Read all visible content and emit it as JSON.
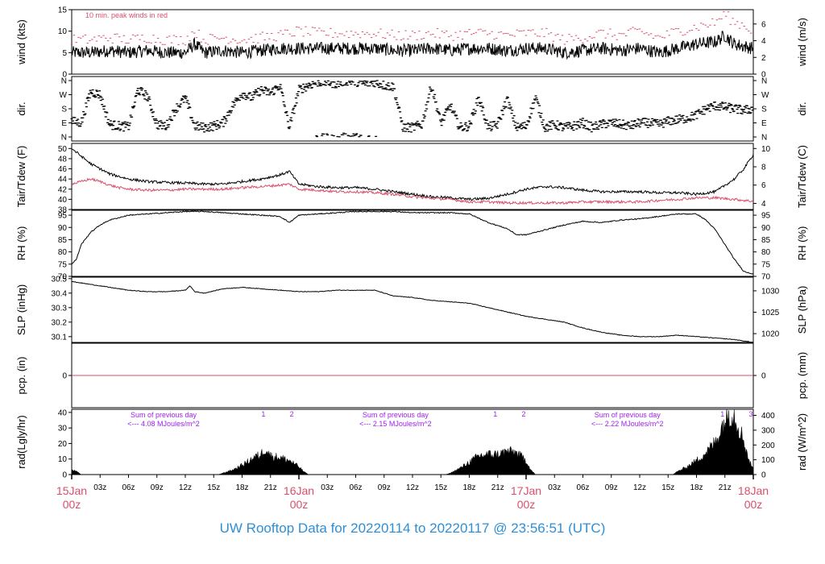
{
  "title": "UW Rooftop Data for 20220114  to  20220117 @ 23:56:51  (UTC)",
  "colors": {
    "primary": "#000000",
    "secondary": "#d94f6b",
    "note": "#a020f0",
    "title": "#2e8fd6",
    "datelabel": "#d94f6b"
  },
  "time_axis": {
    "hours": [
      "03z",
      "06z",
      "09z",
      "12z",
      "15z",
      "18z",
      "21z"
    ],
    "days": [
      {
        "date": "15Jan",
        "hour": "00z"
      },
      {
        "date": "16Jan",
        "hour": "00z"
      },
      {
        "date": "17Jan",
        "hour": "00z"
      },
      {
        "date": "18Jan",
        "hour": "00z"
      }
    ],
    "range_hours": [
      0,
      72
    ]
  },
  "chart_data": [
    {
      "type": "line",
      "panel": "wind",
      "ylabel": "wind (kts)",
      "ylabel_right": "wind (m/s)",
      "ylim": [
        0,
        15
      ],
      "yticks": [
        0,
        5,
        10,
        15
      ],
      "yticks_right": [
        0,
        2,
        4,
        6
      ],
      "right_factor": 0.5144,
      "annotation": "10 min. peak winds in red",
      "series": [
        {
          "x": [
            0,
            2,
            4,
            6,
            8,
            10,
            12,
            13,
            14,
            16,
            18,
            20,
            22,
            24,
            26,
            28,
            30,
            32,
            34,
            36,
            38,
            40,
            42,
            44,
            46,
            48,
            50,
            52,
            54,
            56,
            58,
            60,
            62,
            64,
            66,
            68,
            69,
            70,
            71,
            72
          ],
          "values": [
            5,
            5,
            5.5,
            5,
            5.5,
            5,
            5,
            7,
            5,
            5.5,
            5,
            5.5,
            6,
            6,
            6,
            6,
            6,
            6,
            5.5,
            5.5,
            6,
            5.5,
            6,
            6,
            5.5,
            6,
            6,
            5,
            5.5,
            6,
            5.5,
            6,
            5,
            6,
            7,
            7.5,
            9,
            7,
            6.5,
            6
          ]
        },
        {
          "x": [
            0,
            2,
            4,
            6,
            8,
            10,
            12,
            13,
            14,
            16,
            18,
            20,
            22,
            24,
            26,
            28,
            30,
            32,
            34,
            36,
            38,
            40,
            42,
            44,
            46,
            48,
            50,
            52,
            54,
            56,
            58,
            60,
            62,
            64,
            66,
            68,
            69,
            70,
            71,
            72
          ],
          "values": [
            8,
            8,
            8.5,
            8,
            8.5,
            8,
            8,
            10,
            8,
            8.5,
            8,
            8.5,
            9,
            10,
            9.5,
            9.5,
            9.5,
            9.5,
            9,
            9,
            9.5,
            9,
            9.5,
            9.5,
            9,
            9.5,
            9.5,
            8,
            8.5,
            9.5,
            9,
            10,
            8.5,
            10,
            11,
            12,
            14,
            12,
            11.5,
            10
          ]
        }
      ]
    },
    {
      "type": "scatter",
      "panel": "direction",
      "ylabel": "dir.",
      "ylabel_right": "dir.",
      "yticks_labels": [
        "N",
        "E",
        "S",
        "W",
        "N"
      ],
      "yticks": [
        0,
        90,
        180,
        270,
        360
      ],
      "ylim": [
        0,
        360
      ],
      "series": [
        {
          "x": [
            0,
            1,
            2,
            3,
            4,
            5,
            6,
            7,
            8,
            9,
            10,
            11,
            12,
            13,
            14,
            15,
            16,
            17,
            18,
            19,
            20,
            21,
            22,
            23,
            24,
            25,
            26,
            27,
            28,
            29,
            30,
            31,
            32,
            33,
            34,
            35,
            36,
            37,
            38,
            39,
            40,
            41,
            42,
            43,
            44,
            45,
            46,
            47,
            48,
            49,
            50,
            51,
            52,
            53,
            54,
            55,
            56,
            57,
            58,
            59,
            60,
            61,
            62,
            63,
            64,
            65,
            66,
            67,
            68,
            69,
            70,
            71,
            72
          ],
          "values": [
            100,
            90,
            290,
            270,
            80,
            70,
            65,
            300,
            260,
            80,
            70,
            180,
            250,
            70,
            60,
            70,
            90,
            200,
            280,
            250,
            300,
            280,
            330,
            60,
            300,
            330,
            350,
            350,
            340,
            360,
            355,
            340,
            350,
            330,
            320,
            60,
            60,
            80,
            330,
            90,
            200,
            60,
            70,
            250,
            60,
            80,
            240,
            60,
            70,
            250,
            60,
            80,
            60,
            70,
            90,
            60,
            80,
            90,
            80,
            70,
            90,
            90,
            80,
            100,
            110,
            120,
            140,
            180,
            200,
            190,
            180,
            170,
            180
          ]
        }
      ]
    },
    {
      "type": "line",
      "panel": "temperature",
      "ylabel": "Tair/Tdew (F)",
      "ylabel_right": "Tair/Tdew (C)",
      "ylim": [
        38,
        51
      ],
      "yticks": [
        38,
        40,
        42,
        44,
        46,
        48,
        50
      ],
      "yticks_right": [
        4,
        6,
        8,
        10
      ],
      "series": [
        {
          "x": [
            0,
            1,
            2,
            3,
            4,
            5,
            6,
            8,
            10,
            12,
            14,
            16,
            18,
            20,
            22,
            23,
            24,
            26,
            28,
            30,
            32,
            34,
            36,
            38,
            40,
            42,
            44,
            46,
            48,
            50,
            52,
            54,
            56,
            58,
            60,
            62,
            64,
            66,
            68,
            70,
            71,
            72
          ],
          "values": [
            50,
            48.5,
            47,
            46,
            45,
            44.5,
            44,
            43.5,
            43.3,
            43.2,
            43,
            43,
            43.5,
            44,
            44.8,
            45.5,
            43,
            42.5,
            42.3,
            42.3,
            42,
            41.5,
            41,
            40.5,
            40.3,
            40,
            40.2,
            41,
            42,
            42.5,
            42.3,
            41.8,
            41.5,
            41.5,
            41.5,
            41.3,
            41.3,
            41,
            41.5,
            44,
            46,
            48.8
          ]
        },
        {
          "x": [
            0,
            1,
            2,
            3,
            4,
            5,
            6,
            8,
            10,
            12,
            14,
            16,
            18,
            20,
            22,
            23,
            24,
            26,
            28,
            30,
            32,
            34,
            36,
            38,
            40,
            42,
            44,
            46,
            48,
            50,
            52,
            54,
            56,
            58,
            60,
            62,
            64,
            66,
            68,
            70,
            71,
            72
          ],
          "values": [
            43,
            43.5,
            44,
            43.5,
            42.8,
            42.3,
            42,
            41.8,
            41.8,
            42,
            42,
            42,
            42.3,
            42.5,
            42.8,
            43,
            42,
            41.8,
            41.5,
            41.5,
            41.3,
            41,
            40.5,
            40.2,
            40,
            39.5,
            39.5,
            39.3,
            39.3,
            39.3,
            39.3,
            39.5,
            39.5,
            39.5,
            39.5,
            39.8,
            40,
            40.3,
            40.3,
            40,
            39.8,
            39.6
          ]
        }
      ]
    },
    {
      "type": "line",
      "panel": "humidity",
      "ylabel": "RH (%)",
      "ylabel_right": "RH (%)",
      "ylim": [
        70,
        97
      ],
      "yticks": [
        70,
        75,
        80,
        85,
        90,
        95
      ],
      "yticks_right": [
        70,
        75,
        80,
        85,
        90,
        95
      ],
      "series": [
        {
          "x": [
            0,
            0.5,
            1,
            2,
            3,
            4,
            5,
            6,
            8,
            10,
            12,
            14,
            16,
            18,
            20,
            22,
            23,
            24,
            26,
            28,
            30,
            32,
            34,
            36,
            38,
            40,
            42,
            44,
            46,
            47,
            48,
            50,
            52,
            54,
            56,
            58,
            60,
            62,
            64,
            66,
            67,
            68,
            69,
            70,
            71,
            72
          ],
          "values": [
            75,
            77,
            83,
            88,
            91,
            93,
            94,
            95,
            95.5,
            96,
            96.5,
            96.5,
            96,
            95.5,
            95,
            94.5,
            92,
            95,
            95.5,
            96,
            96.5,
            96.5,
            96.5,
            96,
            96,
            96,
            95.5,
            92,
            89.5,
            87,
            87,
            89,
            91,
            92.5,
            92,
            93,
            93.5,
            94.5,
            95.5,
            95.5,
            93,
            89,
            83,
            77,
            72,
            71
          ]
        }
      ]
    },
    {
      "type": "line",
      "panel": "pressure",
      "ylabel": "SLP (inHg)",
      "ylabel_right": "SLP (hPa)",
      "ylim": [
        30.06,
        30.51
      ],
      "yticks": [
        30.1,
        30.2,
        30.3,
        30.4,
        30.5
      ],
      "yticks_right": [
        1020,
        1025,
        1030
      ],
      "series": [
        {
          "x": [
            0,
            2,
            4,
            6,
            8,
            10,
            12,
            12.5,
            13,
            14,
            16,
            18,
            20,
            22,
            24,
            26,
            28,
            30,
            32,
            34,
            36,
            38,
            40,
            42,
            44,
            46,
            48,
            50,
            52,
            54,
            56,
            58,
            60,
            62,
            64,
            66,
            68,
            70,
            72
          ],
          "values": [
            30.48,
            30.46,
            30.44,
            30.42,
            30.41,
            30.41,
            30.42,
            30.45,
            30.41,
            30.4,
            30.43,
            30.44,
            30.43,
            30.42,
            30.41,
            30.41,
            30.42,
            30.42,
            30.42,
            30.38,
            30.37,
            30.35,
            30.34,
            30.33,
            30.3,
            30.27,
            30.24,
            30.22,
            30.2,
            30.16,
            30.13,
            30.11,
            30.1,
            30.1,
            30.11,
            30.1,
            30.09,
            30.08,
            30.06
          ]
        }
      ]
    },
    {
      "type": "line",
      "panel": "precipitation",
      "ylabel": "pcp. (in)",
      "ylabel_right": "pcp. (mm)",
      "ylim": [
        -0.1,
        0.1
      ],
      "yticks": [
        0
      ],
      "yticks_right": [
        0
      ],
      "series": [
        {
          "x": [
            0,
            72
          ],
          "values": [
            0,
            0
          ]
        }
      ]
    },
    {
      "type": "area",
      "panel": "radiation",
      "ylabel": "rad(Lgly/hr)",
      "ylabel_right": "rad (W/m^2)",
      "ylim": [
        0,
        42
      ],
      "yticks": [
        0,
        10,
        20,
        30,
        40
      ],
      "yticks_right": [
        0,
        100,
        200,
        300,
        400
      ],
      "annotations": [
        {
          "line1": "Sum of previous day",
          "line2": "<--- 4.08 MJoules/m^2",
          "x": 8
        },
        {
          "line1": "Sum of previous day",
          "line2": "<--- 2.15 MJoules/m^2",
          "x": 32.5
        },
        {
          "line1": "Sum of previous day",
          "line2": "<--- 2.22 MJoules/m^2",
          "x": 57
        }
      ],
      "markers": [
        {
          "label": "1",
          "x": 20.5
        },
        {
          "label": "2",
          "x": 23.5
        },
        {
          "label": "1",
          "x": 45
        },
        {
          "label": "2",
          "x": 48
        },
        {
          "label": "1",
          "x": 69
        },
        {
          "label": "3",
          "x": 72
        }
      ],
      "series": [
        {
          "x": [
            0,
            0.5,
            1,
            15.5,
            16,
            17,
            18,
            19,
            20,
            20.5,
            21,
            22,
            23,
            24,
            24.5,
            25,
            39.5,
            40,
            41,
            42,
            43,
            44,
            45,
            46,
            47,
            48,
            48.5,
            49,
            63.5,
            64,
            65,
            66,
            67,
            68,
            68.5,
            69,
            69.5,
            70,
            70.5,
            71,
            71.5,
            72
          ],
          "values": [
            3,
            2,
            0,
            0,
            1,
            3,
            6,
            10,
            13,
            17,
            12,
            11,
            9,
            5,
            2,
            0,
            0,
            1,
            4,
            8,
            12,
            13,
            13,
            15,
            14,
            9,
            3,
            0,
            0,
            2,
            5,
            9,
            14,
            21,
            28,
            35,
            40,
            38,
            30,
            22,
            10,
            3
          ]
        }
      ]
    }
  ]
}
